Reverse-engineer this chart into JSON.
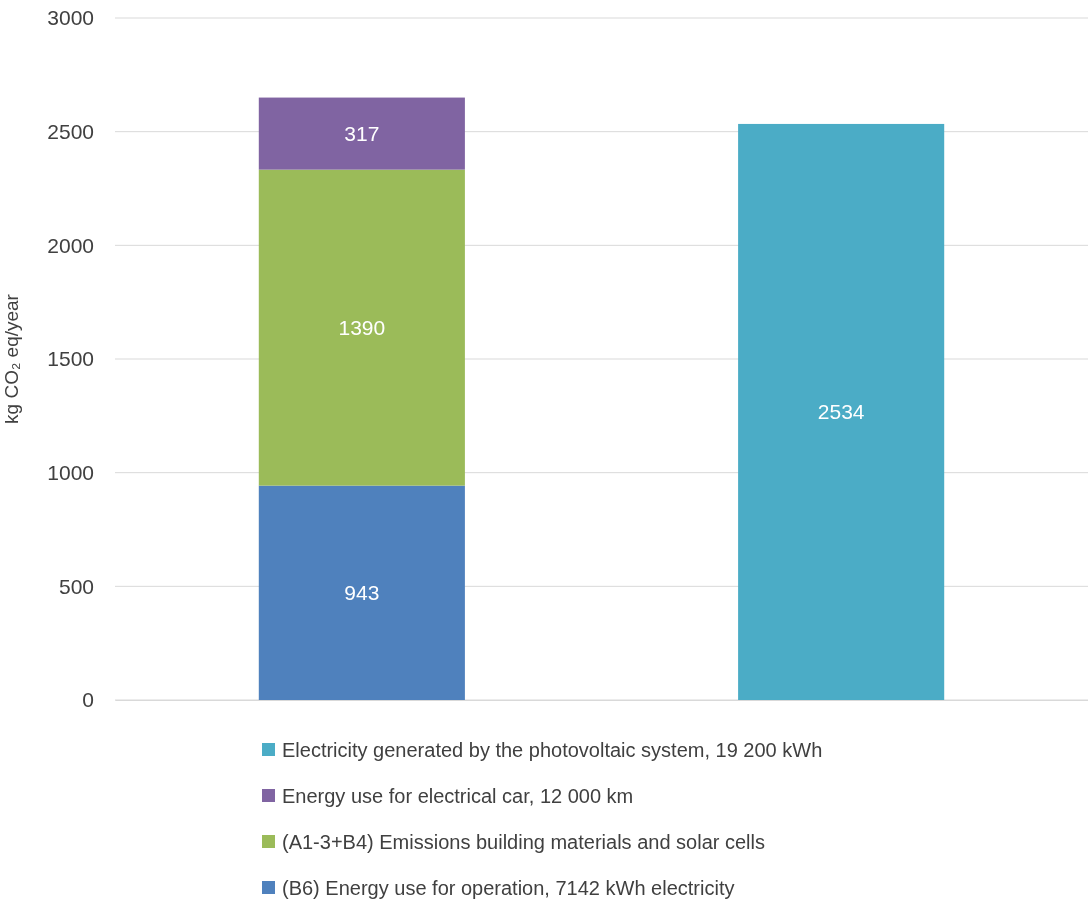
{
  "chart_data": {
    "type": "bar",
    "stacked": true,
    "ylabel": "kg CO₂ eq/year",
    "categories": [
      null,
      null
    ],
    "series": [
      {
        "name": "(B6) Energy use for operation, 7142 kWh electricity",
        "color": "#4f81bd",
        "values": [
          943,
          null
        ]
      },
      {
        "name": "(A1-3+B4) Emissions building materials and solar cells",
        "color": "#9bbb59",
        "values": [
          1390,
          null
        ]
      },
      {
        "name": "Energy use for electrical car, 12 000 km",
        "color": "#8064a2",
        "values": [
          317,
          null
        ]
      },
      {
        "name": "Electricity generated by the photovoltaic system, 19 200 kWh",
        "color": "#4bacc6",
        "values": [
          null,
          2534
        ]
      }
    ],
    "ylim": [
      0,
      3000
    ],
    "yticks": [
      0,
      500,
      1000,
      1500,
      2000,
      2500,
      3000
    ],
    "grid": "y",
    "legend": "bottom",
    "data_labels": true
  }
}
